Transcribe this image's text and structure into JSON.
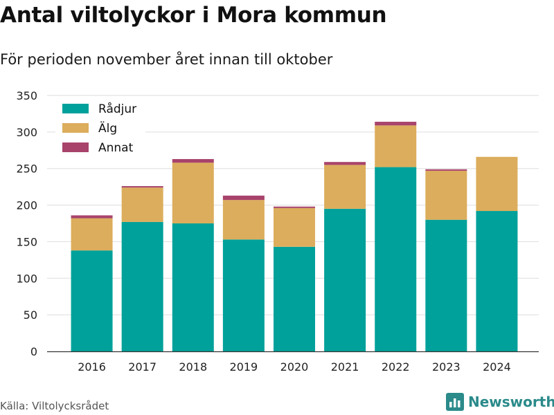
{
  "header": {
    "title": "Antal viltolyckor i Mora kommun",
    "subtitle": "För perioden november året innan till oktober"
  },
  "footer": {
    "source": "Källa: Viltolycksrådet",
    "brand": "Newsworthy",
    "brand_icon": "bar-chart-logo-icon"
  },
  "colors": {
    "radjur": "#00a19a",
    "alg": "#dcad5c",
    "annat": "#a8436b",
    "grid": "#dddddd",
    "axis": "#333333",
    "brand": "#2b8a8a"
  },
  "chart_data": {
    "type": "bar",
    "stacked": true,
    "categories": [
      "2016",
      "2017",
      "2018",
      "2019",
      "2020",
      "2021",
      "2022",
      "2023",
      "2024"
    ],
    "series": [
      {
        "name": "Rådjur",
        "values": [
          138,
          177,
          175,
          153,
          143,
          195,
          252,
          180,
          192
        ]
      },
      {
        "name": "Älg",
        "values": [
          44,
          47,
          83,
          54,
          53,
          60,
          57,
          67,
          74
        ]
      },
      {
        "name": "Annat",
        "values": [
          4,
          2,
          5,
          6,
          2,
          4,
          5,
          2,
          0
        ]
      }
    ],
    "title": "Antal viltolyckor i Mora kommun",
    "subtitle": "För perioden november året innan till oktober",
    "xlabel": "",
    "ylabel": "",
    "ylim": [
      0,
      350
    ],
    "yticks": [
      0,
      50,
      100,
      150,
      200,
      250,
      300,
      350
    ],
    "grid": true,
    "legend": "top-left"
  }
}
